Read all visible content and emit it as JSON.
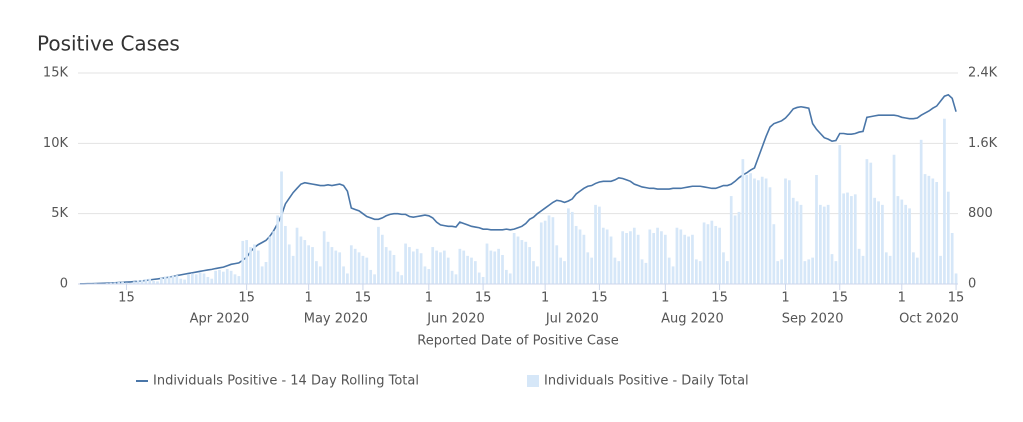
{
  "chart_data": {
    "type": "combo",
    "title": "Positive Cases",
    "x_label": "Reported Date of Positive Case",
    "x": [
      "2020-03-03",
      "2020-03-04",
      "2020-03-05",
      "2020-03-06",
      "2020-03-07",
      "2020-03-08",
      "2020-03-09",
      "2020-03-10",
      "2020-03-11",
      "2020-03-12",
      "2020-03-13",
      "2020-03-14",
      "2020-03-15",
      "2020-03-16",
      "2020-03-17",
      "2020-03-18",
      "2020-03-19",
      "2020-03-20",
      "2020-03-21",
      "2020-03-22",
      "2020-03-23",
      "2020-03-24",
      "2020-03-25",
      "2020-03-26",
      "2020-03-27",
      "2020-03-28",
      "2020-03-29",
      "2020-03-30",
      "2020-03-31",
      "2020-04-01",
      "2020-04-02",
      "2020-04-03",
      "2020-04-04",
      "2020-04-05",
      "2020-04-06",
      "2020-04-07",
      "2020-04-08",
      "2020-04-09",
      "2020-04-10",
      "2020-04-11",
      "2020-04-12",
      "2020-04-13",
      "2020-04-14",
      "2020-04-15",
      "2020-04-16",
      "2020-04-17",
      "2020-04-18",
      "2020-04-19",
      "2020-04-20",
      "2020-04-21",
      "2020-04-22",
      "2020-04-23",
      "2020-04-24",
      "2020-04-25",
      "2020-04-26",
      "2020-04-27",
      "2020-04-28",
      "2020-04-29",
      "2020-04-30",
      "2020-05-01",
      "2020-05-02",
      "2020-05-03",
      "2020-05-04",
      "2020-05-05",
      "2020-05-06",
      "2020-05-07",
      "2020-05-08",
      "2020-05-09",
      "2020-05-10",
      "2020-05-11",
      "2020-05-12",
      "2020-05-13",
      "2020-05-14",
      "2020-05-15",
      "2020-05-16",
      "2020-05-17",
      "2020-05-18",
      "2020-05-19",
      "2020-05-20",
      "2020-05-21",
      "2020-05-22",
      "2020-05-23",
      "2020-05-24",
      "2020-05-25",
      "2020-05-26",
      "2020-05-27",
      "2020-05-28",
      "2020-05-29",
      "2020-05-30",
      "2020-05-31",
      "2020-06-01",
      "2020-06-02",
      "2020-06-03",
      "2020-06-04",
      "2020-06-05",
      "2020-06-06",
      "2020-06-07",
      "2020-06-08",
      "2020-06-09",
      "2020-06-10",
      "2020-06-11",
      "2020-06-12",
      "2020-06-13",
      "2020-06-14",
      "2020-06-15",
      "2020-06-16",
      "2020-06-17",
      "2020-06-18",
      "2020-06-19",
      "2020-06-20",
      "2020-06-21",
      "2020-06-22",
      "2020-06-23",
      "2020-06-24",
      "2020-06-25",
      "2020-06-26",
      "2020-06-27",
      "2020-06-28",
      "2020-06-29",
      "2020-06-30",
      "2020-07-01",
      "2020-07-02",
      "2020-07-03",
      "2020-07-04",
      "2020-07-05",
      "2020-07-06",
      "2020-07-07",
      "2020-07-08",
      "2020-07-09",
      "2020-07-10",
      "2020-07-11",
      "2020-07-12",
      "2020-07-13",
      "2020-07-14",
      "2020-07-15",
      "2020-07-16",
      "2020-07-17",
      "2020-07-18",
      "2020-07-19",
      "2020-07-20",
      "2020-07-21",
      "2020-07-22",
      "2020-07-23",
      "2020-07-24",
      "2020-07-25",
      "2020-07-26",
      "2020-07-27",
      "2020-07-28",
      "2020-07-29",
      "2020-07-30",
      "2020-07-31",
      "2020-08-01",
      "2020-08-02",
      "2020-08-03",
      "2020-08-04",
      "2020-08-05",
      "2020-08-06",
      "2020-08-07",
      "2020-08-08",
      "2020-08-09",
      "2020-08-10",
      "2020-08-11",
      "2020-08-12",
      "2020-08-13",
      "2020-08-14",
      "2020-08-15",
      "2020-08-16",
      "2020-08-17",
      "2020-08-18",
      "2020-08-19",
      "2020-08-20",
      "2020-08-21",
      "2020-08-22",
      "2020-08-23",
      "2020-08-24",
      "2020-08-25",
      "2020-08-26",
      "2020-08-27",
      "2020-08-28",
      "2020-08-29",
      "2020-08-30",
      "2020-08-31",
      "2020-09-01",
      "2020-09-02",
      "2020-09-03",
      "2020-09-04",
      "2020-09-05",
      "2020-09-06",
      "2020-09-07",
      "2020-09-08",
      "2020-09-09",
      "2020-09-10",
      "2020-09-11",
      "2020-09-12",
      "2020-09-13",
      "2020-09-14",
      "2020-09-15",
      "2020-09-16",
      "2020-09-17",
      "2020-09-18",
      "2020-09-19",
      "2020-09-20",
      "2020-09-21",
      "2020-09-22",
      "2020-09-23",
      "2020-09-24",
      "2020-09-25",
      "2020-09-26",
      "2020-09-27",
      "2020-09-28",
      "2020-09-29",
      "2020-09-30",
      "2020-10-01",
      "2020-10-02",
      "2020-10-03",
      "2020-10-04",
      "2020-10-05",
      "2020-10-06",
      "2020-10-07",
      "2020-10-08",
      "2020-10-09",
      "2020-10-10",
      "2020-10-11",
      "2020-10-12",
      "2020-10-13",
      "2020-10-14",
      "2020-10-15"
    ],
    "series": [
      {
        "name": "Individuals Positive - 14 Day Rolling Total",
        "type": "line",
        "color": "#4a76a8",
        "axis": "y",
        "values": [
          10,
          15,
          20,
          25,
          30,
          40,
          50,
          60,
          70,
          85,
          100,
          120,
          135,
          150,
          170,
          190,
          220,
          250,
          290,
          330,
          360,
          400,
          440,
          490,
          540,
          600,
          650,
          700,
          750,
          800,
          850,
          900,
          950,
          1000,
          1040,
          1100,
          1150,
          1200,
          1300,
          1400,
          1450,
          1500,
          1700,
          1900,
          2300,
          2600,
          2800,
          2950,
          3100,
          3400,
          3800,
          4300,
          4900,
          5700,
          6100,
          6500,
          6800,
          7100,
          7200,
          7150,
          7100,
          7050,
          7000,
          7000,
          7050,
          7000,
          7050,
          7100,
          7000,
          6600,
          5400,
          5300,
          5200,
          5000,
          4800,
          4700,
          4600,
          4600,
          4700,
          4850,
          4950,
          5000,
          5000,
          4950,
          4950,
          4800,
          4750,
          4800,
          4850,
          4900,
          4850,
          4700,
          4400,
          4200,
          4150,
          4100,
          4100,
          4050,
          4400,
          4300,
          4200,
          4100,
          4050,
          4000,
          3900,
          3900,
          3850,
          3850,
          3850,
          3850,
          3900,
          3850,
          3900,
          4000,
          4100,
          4300,
          4600,
          4750,
          5000,
          5200,
          5400,
          5600,
          5800,
          5950,
          5900,
          5800,
          5900,
          6050,
          6400,
          6600,
          6800,
          6950,
          7000,
          7150,
          7250,
          7300,
          7300,
          7300,
          7400,
          7550,
          7500,
          7400,
          7300,
          7100,
          7000,
          6900,
          6850,
          6800,
          6800,
          6750,
          6750,
          6750,
          6750,
          6800,
          6800,
          6800,
          6850,
          6900,
          6950,
          6950,
          6950,
          6900,
          6850,
          6800,
          6800,
          6900,
          7000,
          7000,
          7100,
          7300,
          7550,
          7750,
          7900,
          8100,
          8250,
          9000,
          9750,
          10500,
          11150,
          11400,
          11500,
          11600,
          11800,
          12100,
          12450,
          12550,
          12600,
          12550,
          12500,
          11400,
          11000,
          10700,
          10400,
          10300,
          10150,
          10200,
          10700,
          10700,
          10650,
          10650,
          10700,
          10800,
          10850,
          11850,
          11900,
          11950,
          12000,
          12000,
          12000,
          12000,
          12000,
          11950,
          11850,
          11800,
          11750,
          11750,
          11800,
          12000,
          12150,
          12300,
          12500,
          12650,
          13000,
          13350,
          13450,
          13200,
          12250
        ]
      },
      {
        "name": "Individuals Positive - Daily Total",
        "type": "bar",
        "color": "#d6e7f8",
        "axis": "y2",
        "values": [
          2,
          3,
          4,
          6,
          8,
          5,
          3,
          10,
          14,
          18,
          22,
          25,
          15,
          10,
          30,
          40,
          45,
          55,
          60,
          35,
          30,
          70,
          85,
          90,
          95,
          100,
          60,
          50,
          110,
          120,
          110,
          130,
          120,
          80,
          60,
          150,
          160,
          140,
          170,
          150,
          110,
          90,
          490,
          500,
          420,
          450,
          380,
          200,
          250,
          540,
          600,
          780,
          1280,
          660,
          450,
          320,
          640,
          540,
          500,
          440,
          420,
          260,
          200,
          600,
          480,
          420,
          380,
          360,
          200,
          120,
          440,
          400,
          360,
          320,
          300,
          160,
          110,
          650,
          560,
          420,
          380,
          330,
          140,
          100,
          460,
          420,
          370,
          400,
          350,
          200,
          170,
          420,
          380,
          360,
          380,
          300,
          150,
          110,
          400,
          380,
          320,
          300,
          260,
          130,
          80,
          460,
          380,
          370,
          400,
          330,
          160,
          120,
          580,
          540,
          500,
          480,
          420,
          260,
          200,
          700,
          720,
          780,
          760,
          440,
          300,
          260,
          860,
          820,
          660,
          620,
          560,
          360,
          300,
          900,
          880,
          640,
          620,
          540,
          300,
          260,
          600,
          580,
          600,
          640,
          560,
          280,
          240,
          620,
          580,
          640,
          600,
          560,
          300,
          200,
          640,
          620,
          560,
          540,
          560,
          280,
          260,
          700,
          680,
          720,
          660,
          640,
          360,
          260,
          1000,
          780,
          820,
          1420,
          1240,
          1260,
          1200,
          1180,
          1220,
          1200,
          1100,
          680,
          260,
          280,
          1200,
          1180,
          980,
          940,
          900,
          260,
          280,
          300,
          1240,
          900,
          880,
          900,
          340,
          260,
          1580,
          1030,
          1040,
          1000,
          1020,
          400,
          320,
          1420,
          1380,
          980,
          940,
          900,
          360,
          320,
          1470,
          1000,
          960,
          900,
          860,
          360,
          300,
          1640,
          1250,
          1230,
          1200,
          1160,
          320,
          1880,
          1050,
          580,
          120
        ]
      }
    ],
    "xlim": [
      "2020-03-03",
      "2020-10-15"
    ],
    "xticks": [
      {
        "value": "2020-03-15",
        "label": "15"
      },
      {
        "value": "2020-04-15",
        "label": "15"
      },
      {
        "value": "2020-05-01",
        "label": "1"
      },
      {
        "value": "2020-05-15",
        "label": "15"
      },
      {
        "value": "2020-06-01",
        "label": "1"
      },
      {
        "value": "2020-06-15",
        "label": "15"
      },
      {
        "value": "2020-07-01",
        "label": "1"
      },
      {
        "value": "2020-07-15",
        "label": "15"
      },
      {
        "value": "2020-08-01",
        "label": "1"
      },
      {
        "value": "2020-08-15",
        "label": "15"
      },
      {
        "value": "2020-09-01",
        "label": "1"
      },
      {
        "value": "2020-09-15",
        "label": "15"
      },
      {
        "value": "2020-10-01",
        "label": "1"
      },
      {
        "value": "2020-10-15",
        "label": "15"
      }
    ],
    "month_labels": [
      {
        "value": "2020-04-01",
        "label": "Apr 2020"
      },
      {
        "value": "2020-05-01",
        "label": "May 2020"
      },
      {
        "value": "2020-06-01",
        "label": "Jun 2020"
      },
      {
        "value": "2020-07-01",
        "label": "Jul 2020"
      },
      {
        "value": "2020-08-01",
        "label": "Aug 2020"
      },
      {
        "value": "2020-09-01",
        "label": "Sep 2020"
      },
      {
        "value": "2020-10-01",
        "label": "Oct 2020"
      }
    ],
    "ylim": [
      0,
      15000
    ],
    "yticks": [
      0,
      {
        "value": 5000,
        "label": "5K"
      },
      {
        "value": 10000,
        "label": "10K"
      },
      {
        "value": 15000,
        "label": "15K"
      }
    ],
    "y2lim": [
      0,
      2400
    ],
    "y2ticks": [
      0,
      800,
      {
        "value": 1600,
        "label": "1.6K"
      },
      {
        "value": 2400,
        "label": "2.4K"
      }
    ],
    "grid": true,
    "legend": "bottom"
  }
}
